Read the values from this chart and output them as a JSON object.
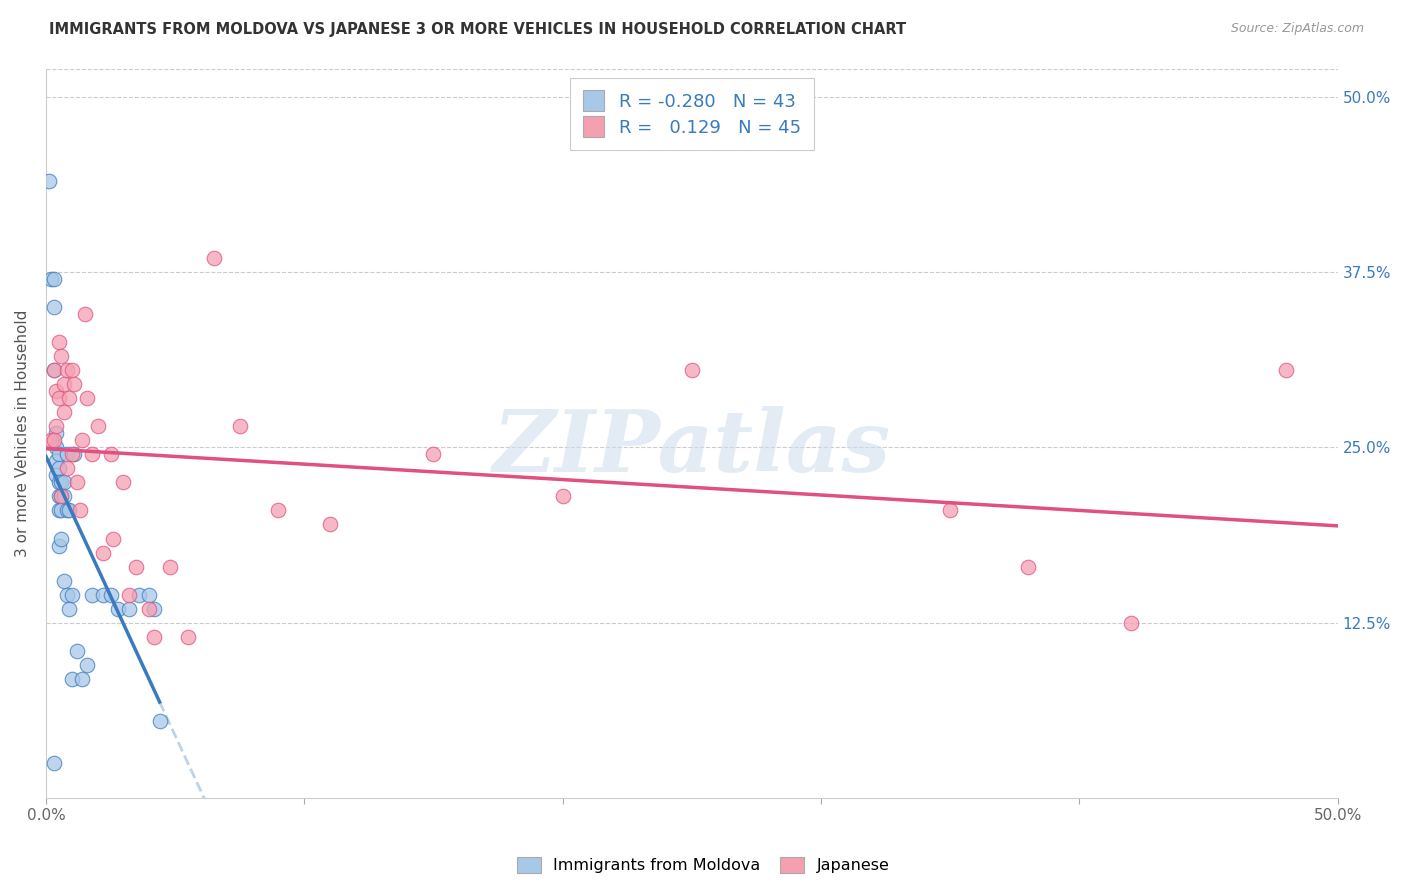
{
  "title": "IMMIGRANTS FROM MOLDOVA VS JAPANESE 3 OR MORE VEHICLES IN HOUSEHOLD CORRELATION CHART",
  "source": "Source: ZipAtlas.com",
  "ylabel": "3 or more Vehicles in Household",
  "color_blue": "#a8c8e8",
  "color_pink": "#f4a0b0",
  "line_blue": "#3a7abf",
  "line_pink": "#e05080",
  "line_dash": "#b0c8e0",
  "watermark": "ZIPatlas",
  "xlim": [
    0.0,
    0.5
  ],
  "ylim": [
    0.0,
    0.52
  ],
  "ytick_positions": [
    0.125,
    0.25,
    0.375,
    0.5
  ],
  "ytick_labels": [
    "12.5%",
    "25.0%",
    "37.5%",
    "50.0%"
  ],
  "xtick_positions": [
    0.0,
    0.1,
    0.2,
    0.3,
    0.4,
    0.5
  ],
  "xtick_show": [
    "0.0%",
    "",
    "",
    "",
    "",
    "50.0%"
  ],
  "blue_x": [
    0.001,
    0.002,
    0.003,
    0.003,
    0.003,
    0.004,
    0.004,
    0.004,
    0.004,
    0.005,
    0.005,
    0.005,
    0.005,
    0.005,
    0.005,
    0.006,
    0.006,
    0.006,
    0.006,
    0.007,
    0.007,
    0.007,
    0.008,
    0.008,
    0.008,
    0.009,
    0.009,
    0.01,
    0.01,
    0.011,
    0.012,
    0.014,
    0.016,
    0.018,
    0.022,
    0.025,
    0.028,
    0.032,
    0.036,
    0.04,
    0.042,
    0.044,
    0.003
  ],
  "blue_y": [
    0.44,
    0.37,
    0.37,
    0.35,
    0.305,
    0.26,
    0.25,
    0.24,
    0.23,
    0.245,
    0.235,
    0.225,
    0.215,
    0.205,
    0.18,
    0.225,
    0.215,
    0.205,
    0.185,
    0.225,
    0.215,
    0.155,
    0.245,
    0.205,
    0.145,
    0.205,
    0.135,
    0.145,
    0.085,
    0.245,
    0.105,
    0.085,
    0.095,
    0.145,
    0.145,
    0.145,
    0.135,
    0.135,
    0.145,
    0.145,
    0.135,
    0.055,
    0.025
  ],
  "pink_x": [
    0.002,
    0.003,
    0.004,
    0.004,
    0.005,
    0.005,
    0.006,
    0.007,
    0.007,
    0.008,
    0.008,
    0.009,
    0.01,
    0.01,
    0.011,
    0.012,
    0.013,
    0.014,
    0.015,
    0.016,
    0.018,
    0.02,
    0.022,
    0.025,
    0.026,
    0.03,
    0.032,
    0.035,
    0.04,
    0.042,
    0.048,
    0.055,
    0.065,
    0.075,
    0.09,
    0.11,
    0.15,
    0.2,
    0.25,
    0.35,
    0.38,
    0.42,
    0.48,
    0.003,
    0.006
  ],
  "pink_y": [
    0.255,
    0.305,
    0.29,
    0.265,
    0.325,
    0.285,
    0.315,
    0.295,
    0.275,
    0.305,
    0.235,
    0.285,
    0.305,
    0.245,
    0.295,
    0.225,
    0.205,
    0.255,
    0.345,
    0.285,
    0.245,
    0.265,
    0.175,
    0.245,
    0.185,
    0.225,
    0.145,
    0.165,
    0.135,
    0.115,
    0.165,
    0.115,
    0.385,
    0.265,
    0.205,
    0.195,
    0.245,
    0.215,
    0.305,
    0.205,
    0.165,
    0.125,
    0.305,
    0.255,
    0.215
  ]
}
